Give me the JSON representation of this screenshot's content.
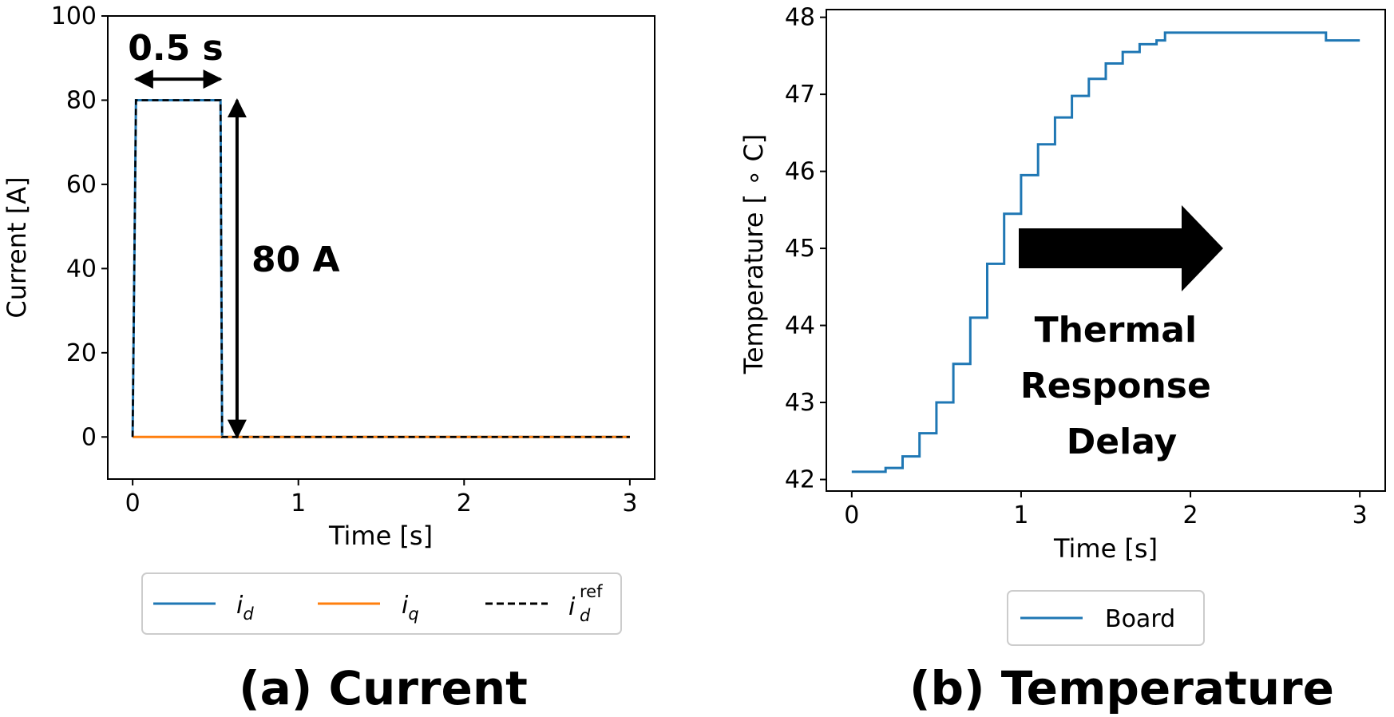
{
  "chart_data": [
    {
      "type": "line",
      "caption": "(a) Current",
      "xlabel": "Time [s]",
      "ylabel": "Current [A]",
      "xlim": [
        -0.15,
        3.15
      ],
      "ylim": [
        -10,
        100
      ],
      "xticks": [
        0,
        1,
        2,
        3
      ],
      "yticks": [
        0,
        20,
        40,
        60,
        80,
        100
      ],
      "grid": false,
      "legend_position": "bottom-outside",
      "series": [
        {
          "name": "i_d",
          "legend_main": "i",
          "legend_sub": "d",
          "legend_sup": "",
          "color": "#1f77b4",
          "style": "solid",
          "x": [
            0,
            0.02,
            0.03,
            0.53,
            0.54,
            3.0
          ],
          "y": [
            0,
            80,
            80,
            80,
            0,
            0
          ]
        },
        {
          "name": "i_q",
          "legend_main": "i",
          "legend_sub": "q",
          "legend_sup": "",
          "color": "#ff7f0e",
          "style": "solid",
          "x": [
            0,
            3.0
          ],
          "y": [
            0,
            0
          ]
        },
        {
          "name": "i_d^ref",
          "legend_main": "i",
          "legend_sub": "d",
          "legend_sup": "ref",
          "color": "#000000",
          "style": "dashed",
          "x": [
            0,
            0.02,
            0.53,
            0.54,
            3.0
          ],
          "y": [
            0,
            80,
            80,
            0,
            0
          ]
        }
      ],
      "annotations": [
        {
          "text": "0.5 s",
          "type": "horizontal-double-arrow",
          "x_from": 0.02,
          "x_to": 0.53,
          "y": 85
        },
        {
          "text": "80 A",
          "type": "vertical-double-arrow",
          "x": 0.63,
          "y_from": 80,
          "y_to": 0
        }
      ]
    },
    {
      "type": "line",
      "caption": "(b) Temperature",
      "xlabel": "Time [s]",
      "ylabel": "Temperature [ ∘ C]",
      "xlim": [
        -0.15,
        3.15
      ],
      "ylim": [
        41.85,
        48.1
      ],
      "xticks": [
        0,
        1,
        2,
        3
      ],
      "yticks": [
        42,
        43,
        44,
        45,
        46,
        47,
        48
      ],
      "grid": false,
      "legend_position": "bottom-outside",
      "series": [
        {
          "name": "Board",
          "color": "#1f77b4",
          "style": "step",
          "x": [
            0,
            0.1,
            0.2,
            0.3,
            0.4,
            0.5,
            0.6,
            0.7,
            0.8,
            0.9,
            1.0,
            1.1,
            1.2,
            1.3,
            1.4,
            1.5,
            1.6,
            1.7,
            1.8,
            1.85,
            2.0,
            2.5,
            2.75,
            2.8,
            3.0
          ],
          "y": [
            42.1,
            42.1,
            42.15,
            42.3,
            42.6,
            43.0,
            43.5,
            44.1,
            44.8,
            45.45,
            45.95,
            46.35,
            46.7,
            46.98,
            47.2,
            47.4,
            47.55,
            47.65,
            47.7,
            47.8,
            47.8,
            47.8,
            47.8,
            47.7,
            47.7
          ]
        }
      ],
      "annotations": [
        {
          "type": "right-arrow",
          "lines": [
            "Thermal",
            "Response",
            "Delay"
          ]
        }
      ]
    }
  ]
}
